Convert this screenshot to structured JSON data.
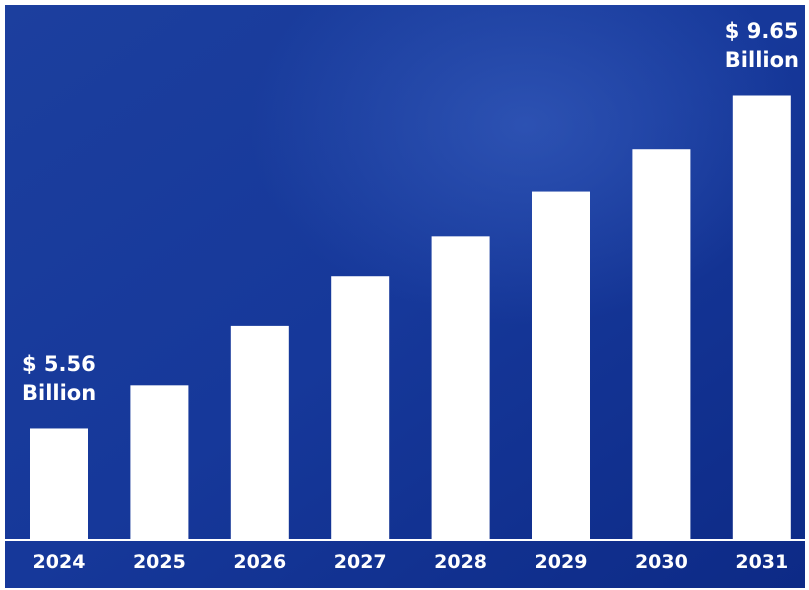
{
  "chart_data": {
    "type": "bar",
    "categories": [
      "2024",
      "2025",
      "2026",
      "2027",
      "2028",
      "2029",
      "2030",
      "2031"
    ],
    "values": [
      5.56,
      6.09,
      6.82,
      7.43,
      7.92,
      8.47,
      8.99,
      9.65
    ],
    "value_labels": [
      "$ 5.56 Billion",
      null,
      null,
      null,
      null,
      null,
      null,
      "$ 9.65 Billion"
    ],
    "color": "#ffffff",
    "ylim": [
      4.19,
      10
    ]
  }
}
